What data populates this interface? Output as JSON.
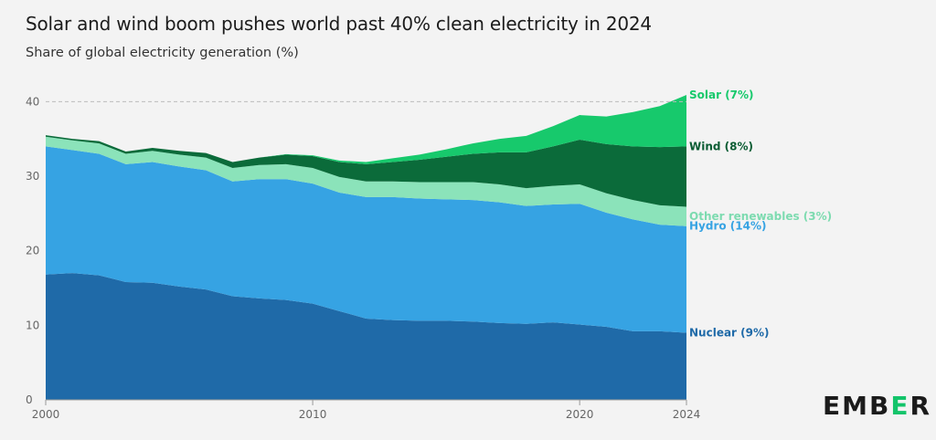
{
  "chart_data": {
    "type": "area",
    "title": "Solar and wind boom pushes world past 40% clean electricity in 2024",
    "subtitle": "Share of global electricity generation (%)",
    "xlabel": "",
    "ylabel": "",
    "x": [
      2000,
      2001,
      2002,
      2003,
      2004,
      2005,
      2006,
      2007,
      2008,
      2009,
      2010,
      2011,
      2012,
      2013,
      2014,
      2015,
      2016,
      2017,
      2018,
      2019,
      2020,
      2021,
      2022,
      2023,
      2024
    ],
    "x_ticks": [
      "2000",
      "2010",
      "2020",
      "2024"
    ],
    "y_ticks": [
      "0",
      "10",
      "20",
      "30",
      "40"
    ],
    "ylim": [
      0,
      42
    ],
    "reference_line": 40,
    "stacked": true,
    "series": [
      {
        "name": "Nuclear",
        "label": "Nuclear (9%)",
        "color": "#1f6aa8",
        "values": [
          16.8,
          17.0,
          16.7,
          15.8,
          15.7,
          15.2,
          14.8,
          13.9,
          13.6,
          13.4,
          12.9,
          11.9,
          10.9,
          10.7,
          10.6,
          10.6,
          10.5,
          10.3,
          10.2,
          10.4,
          10.1,
          9.8,
          9.2,
          9.2,
          9.0
        ]
      },
      {
        "name": "Hydro",
        "label": "Hydro (14%)",
        "color": "#36a3e3",
        "values": [
          17.2,
          16.5,
          16.3,
          15.8,
          16.2,
          16.1,
          16.0,
          15.4,
          16.0,
          16.2,
          16.1,
          15.9,
          16.3,
          16.5,
          16.4,
          16.3,
          16.3,
          16.2,
          15.8,
          15.8,
          16.2,
          15.3,
          15.0,
          14.3,
          14.3
        ]
      },
      {
        "name": "Other renewables",
        "label": "Other renewables (3%)",
        "color": "#8be3ba",
        "values": [
          1.3,
          1.3,
          1.4,
          1.4,
          1.5,
          1.6,
          1.7,
          1.8,
          1.9,
          2.0,
          2.1,
          2.1,
          2.1,
          2.1,
          2.2,
          2.3,
          2.4,
          2.4,
          2.4,
          2.5,
          2.6,
          2.6,
          2.6,
          2.6,
          2.6
        ]
      },
      {
        "name": "Wind",
        "label": "Wind (8%)",
        "color": "#0b6b3a",
        "values": [
          0.2,
          0.2,
          0.3,
          0.3,
          0.4,
          0.5,
          0.6,
          0.8,
          1.0,
          1.3,
          1.6,
          2.0,
          2.3,
          2.6,
          3.0,
          3.4,
          3.8,
          4.3,
          4.8,
          5.3,
          6.0,
          6.6,
          7.2,
          7.8,
          8.1
        ]
      },
      {
        "name": "Solar",
        "label": "Solar (7%)",
        "color": "#17c96c",
        "values": [
          0.0,
          0.0,
          0.0,
          0.0,
          0.0,
          0.0,
          0.0,
          0.0,
          0.0,
          0.05,
          0.1,
          0.2,
          0.3,
          0.5,
          0.7,
          1.0,
          1.4,
          1.8,
          2.2,
          2.7,
          3.3,
          3.7,
          4.6,
          5.5,
          6.9
        ]
      }
    ]
  },
  "brand": {
    "logo_pre": "EMB",
    "logo_mid": "E",
    "logo_post": "R"
  }
}
